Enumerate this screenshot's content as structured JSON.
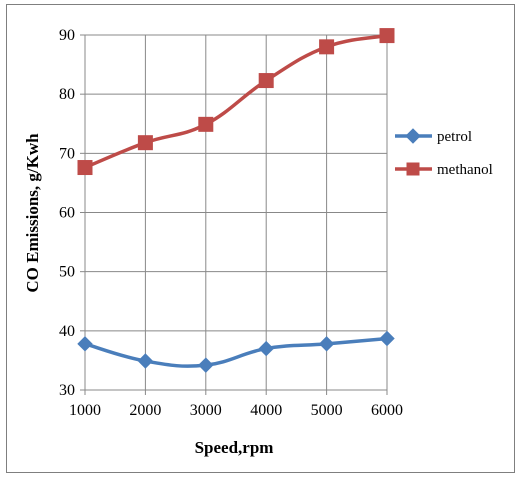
{
  "chart_data": {
    "type": "line",
    "title": "",
    "xlabel": "Speed,rpm",
    "ylabel": "CO Emissions, g/Kwh",
    "x": [
      1000,
      2000,
      3000,
      4000,
      5000,
      6000
    ],
    "xlim": [
      1000,
      6000
    ],
    "ylim": [
      30,
      90
    ],
    "yticks": [
      30,
      40,
      50,
      60,
      70,
      80,
      90
    ],
    "grid": true,
    "legend": "right",
    "series": [
      {
        "name": "petrol",
        "values": [
          37.8,
          34.9,
          34.2,
          37.0,
          37.8,
          38.7
        ],
        "color": "#4a7ebb",
        "marker": "diamond"
      },
      {
        "name": "methanol",
        "values": [
          67.6,
          71.8,
          74.9,
          82.3,
          88.0,
          89.9
        ],
        "color": "#be4b48",
        "marker": "square"
      }
    ]
  }
}
